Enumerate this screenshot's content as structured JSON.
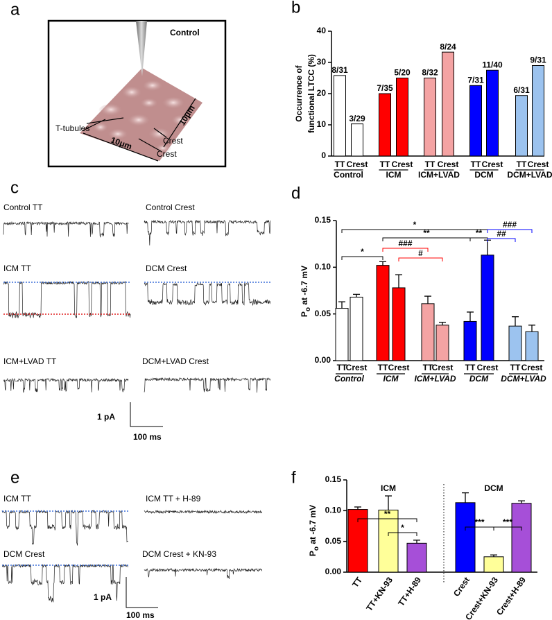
{
  "panel_labels": [
    "a",
    "b",
    "c",
    "d",
    "e",
    "f"
  ],
  "panel_a": {
    "title": "Control",
    "labels": [
      "T-tubules",
      "Crest",
      "Crest"
    ],
    "scale": [
      "10μm",
      "10μm"
    ]
  },
  "panel_c": {
    "traces": [
      "Control TT",
      "Control Crest",
      "ICM TT",
      "DCM Crest",
      "ICM+LVAD TT",
      "DCM+LVAD Crest"
    ],
    "scale_y": "1 pA",
    "scale_x": "100 ms"
  },
  "panel_e": {
    "traces": [
      "ICM TT",
      "ICM TT + H-89",
      "DCM Crest",
      "DCM Crest + KN-93"
    ],
    "scale_y": "1 pA",
    "scale_x": "100 ms"
  },
  "chart_data": [
    {
      "type": "bar",
      "ylabel": [
        "Occurrence of",
        "functional LTCC (%)"
      ],
      "categories": [
        "TT",
        "Crest",
        "TT",
        "Crest",
        "TT",
        "Crest",
        "TT",
        "Crest",
        "TT",
        "Crest"
      ],
      "groups": [
        "Control",
        "ICM",
        "ICM+LVAD",
        "DCM",
        "DCM+LVAD"
      ],
      "values": [
        25.8,
        10.3,
        20,
        25,
        25,
        33.3,
        22.6,
        27.5,
        19.4,
        29.0
      ],
      "value_labels": [
        "8/31",
        "3/29",
        "7/35",
        "5/20",
        "8/32",
        "8/24",
        "7/31",
        "11/40",
        "6/31",
        "9/31"
      ],
      "colors": [
        "#ffffff",
        "#ffffff",
        "#ff0000",
        "#ff0000",
        "#f4a3a3",
        "#f4a3a3",
        "#0000ff",
        "#0000ff",
        "#9cc3ef",
        "#9cc3ef"
      ],
      "ylim": [
        0,
        40
      ],
      "yticks": [
        0,
        10,
        20,
        30,
        40
      ]
    },
    {
      "type": "bar",
      "ylabel": {
        "main": "P",
        "sub": "o",
        "rest": " at -6.7 mV"
      },
      "categories": [
        "TT",
        "Crest",
        "TT",
        "Crest",
        "TT",
        "Crest",
        "TT",
        "Crest",
        "TT",
        "Crest"
      ],
      "groups": [
        "Control",
        "ICM",
        "ICM+LVAD",
        "DCM",
        "DCM+LVAD"
      ],
      "values": [
        0.056,
        0.068,
        0.102,
        0.078,
        0.061,
        0.038,
        0.042,
        0.113,
        0.037,
        0.031
      ],
      "errors": [
        0.007,
        0.003,
        0.004,
        0.014,
        0.008,
        0.003,
        0.01,
        0.016,
        0.01,
        0.007
      ],
      "colors": [
        "#ffffff",
        "#ffffff",
        "#ff0000",
        "#ff0000",
        "#f4a3a3",
        "#f4a3a3",
        "#0000ff",
        "#0000ff",
        "#9cc3ef",
        "#9cc3ef"
      ],
      "brackets": [
        {
          "label": "*",
          "color": "#000000"
        },
        {
          "label": "**",
          "color": "#000000"
        },
        {
          "label": "**",
          "color": "#000000"
        },
        {
          "label": "###",
          "color": "#ff0000"
        },
        {
          "label": "#",
          "color": "#ff0000"
        },
        {
          "label": "*",
          "color": "#000000"
        },
        {
          "label": "###",
          "color": "#0000ff"
        },
        {
          "label": "##",
          "color": "#0000ff"
        }
      ],
      "ylim": [
        0,
        0.15
      ],
      "yticks": [
        {
          "value": 0,
          "label": "0.00"
        },
        {
          "value": 0.05,
          "label": "0.05"
        },
        {
          "value": 0.1,
          "label": "0.10"
        },
        {
          "value": 0.15,
          "label": "0.15"
        }
      ]
    },
    {
      "type": "bar",
      "ylabel": {
        "main": "P",
        "sub": "o",
        "rest": " at -6.7 mV"
      },
      "categories": [
        "TT",
        "TT+KN-93",
        "TT+H-89",
        "Crest",
        "Crest+KN-93",
        "Crest+H-89"
      ],
      "groups": [
        "ICM",
        "DCM"
      ],
      "group_colors": [
        "#ff0000",
        "#0000ff"
      ],
      "values": [
        0.102,
        0.101,
        0.047,
        0.113,
        0.025,
        0.112
      ],
      "errors": [
        0.004,
        0.023,
        0.005,
        0.016,
        0.003,
        0.004
      ],
      "colors": [
        "#ff0000",
        "#ffff99",
        "#a64fd8",
        "#0000ff",
        "#ffff99",
        "#a64fd8"
      ],
      "brackets": [
        {
          "label": "**",
          "color": "#000000"
        },
        {
          "label": "*",
          "color": "#000000"
        },
        {
          "label": "***",
          "color": "#000000"
        },
        {
          "label": "***",
          "color": "#000000"
        }
      ],
      "ylim": [
        0,
        0.15
      ],
      "yticks": [
        {
          "value": 0,
          "label": "0.00"
        },
        {
          "value": 0.05,
          "label": "0.05"
        },
        {
          "value": 0.1,
          "label": "0.10"
        },
        {
          "value": 0.15,
          "label": "0.15"
        }
      ]
    }
  ]
}
